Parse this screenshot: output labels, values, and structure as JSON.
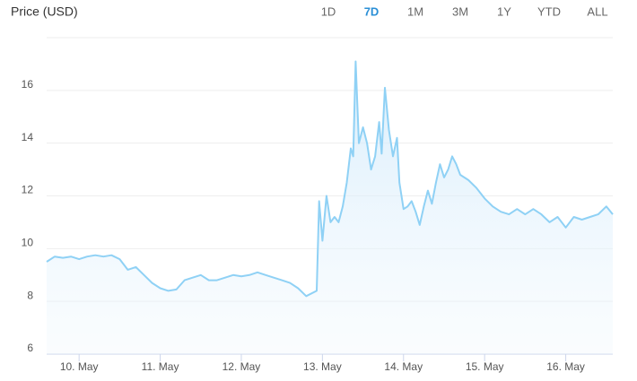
{
  "chart_data": {
    "type": "area",
    "title": "Price (USD)",
    "range_buttons": [
      "1D",
      "7D",
      "1M",
      "3M",
      "1Y",
      "YTD",
      "ALL"
    ],
    "selected_range": "7D",
    "color": "#8fd1f5",
    "grid": true,
    "xlim": [
      9.6,
      16.58
    ],
    "xticks": [
      {
        "value": 10,
        "label": "10. May"
      },
      {
        "value": 11,
        "label": "11. May"
      },
      {
        "value": 12,
        "label": "12. May"
      },
      {
        "value": 13,
        "label": "13. May"
      },
      {
        "value": 14,
        "label": "14. May"
      },
      {
        "value": 15,
        "label": "15. May"
      },
      {
        "value": 16,
        "label": "16. May"
      }
    ],
    "ylim": [
      6,
      18
    ],
    "yticks": [
      6,
      8,
      10,
      12,
      14,
      16
    ],
    "series": [
      {
        "name": "Price",
        "x": [
          9.6,
          9.7,
          9.8,
          9.9,
          10.0,
          10.1,
          10.2,
          10.3,
          10.4,
          10.5,
          10.6,
          10.7,
          10.8,
          10.9,
          11.0,
          11.1,
          11.2,
          11.3,
          11.4,
          11.5,
          11.6,
          11.7,
          11.8,
          11.9,
          12.0,
          12.1,
          12.2,
          12.3,
          12.4,
          12.5,
          12.6,
          12.7,
          12.8,
          12.93,
          12.96,
          13.0,
          13.05,
          13.1,
          13.15,
          13.2,
          13.25,
          13.3,
          13.35,
          13.38,
          13.41,
          13.45,
          13.5,
          13.55,
          13.6,
          13.65,
          13.7,
          13.73,
          13.77,
          13.82,
          13.87,
          13.92,
          13.95,
          14.0,
          14.05,
          14.1,
          14.15,
          14.2,
          14.25,
          14.3,
          14.35,
          14.4,
          14.45,
          14.5,
          14.55,
          14.6,
          14.65,
          14.7,
          14.8,
          14.9,
          15.0,
          15.1,
          15.2,
          15.3,
          15.4,
          15.5,
          15.6,
          15.7,
          15.8,
          15.9,
          16.0,
          16.1,
          16.2,
          16.3,
          16.4,
          16.5,
          16.58
        ],
        "values": [
          9.5,
          9.7,
          9.65,
          9.7,
          9.6,
          9.7,
          9.75,
          9.7,
          9.75,
          9.6,
          9.2,
          9.3,
          9.0,
          8.7,
          8.5,
          8.4,
          8.45,
          8.8,
          8.9,
          9.0,
          8.8,
          8.8,
          8.9,
          9.0,
          8.95,
          9.0,
          9.1,
          9.0,
          8.9,
          8.8,
          8.7,
          8.5,
          8.2,
          8.4,
          11.8,
          10.3,
          12.0,
          11.0,
          11.2,
          11.0,
          11.6,
          12.5,
          13.8,
          13.5,
          17.1,
          14.0,
          14.6,
          14.0,
          13.0,
          13.5,
          14.8,
          13.6,
          16.1,
          14.5,
          13.5,
          14.2,
          12.5,
          11.5,
          11.6,
          11.8,
          11.4,
          10.9,
          11.6,
          12.2,
          11.7,
          12.5,
          13.2,
          12.7,
          13.0,
          13.5,
          13.2,
          12.8,
          12.6,
          12.3,
          11.9,
          11.6,
          11.4,
          11.3,
          11.5,
          11.3,
          11.5,
          11.3,
          11.0,
          11.2,
          10.8,
          11.2,
          11.1,
          11.2,
          11.3,
          11.6,
          11.3
        ]
      }
    ]
  }
}
